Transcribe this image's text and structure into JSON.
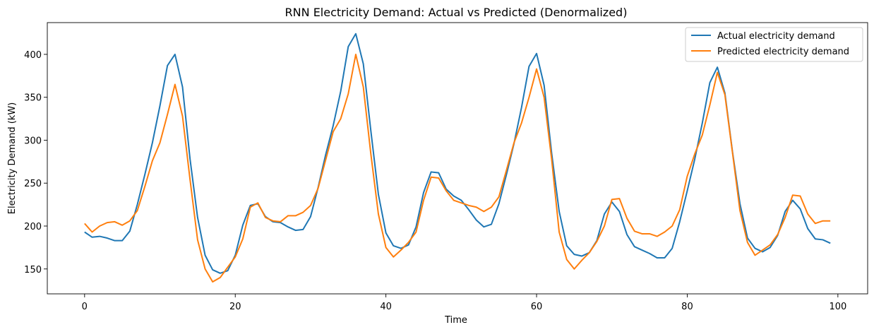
{
  "chart_data": {
    "type": "line",
    "title": "RNN Electricity Demand: Actual vs Predicted (Denormalized)",
    "xlabel": "Time",
    "ylabel": "Electricity Demand (kW)",
    "xlim": [
      -4.95,
      103.95
    ],
    "ylim": [
      121,
      437
    ],
    "xticks": [
      0,
      20,
      40,
      60,
      80,
      100
    ],
    "yticks": [
      150,
      200,
      250,
      300,
      350,
      400
    ],
    "grid": false,
    "legend_position": "top-right",
    "series": [
      {
        "name": "Actual electricity demand",
        "color": "#1f77b4",
        "values": [
          193,
          187,
          188,
          186,
          183,
          183,
          194,
          225,
          260,
          297,
          340,
          387,
          400,
          362,
          278,
          210,
          166,
          149,
          145,
          148,
          166,
          201,
          224,
          226,
          211,
          205,
          204,
          199,
          195,
          196,
          211,
          245,
          283,
          317,
          357,
          409,
          424,
          389,
          311,
          237,
          192,
          177,
          174,
          178,
          199,
          239,
          263,
          262,
          243,
          235,
          230,
          219,
          207,
          199,
          202,
          226,
          260,
          296,
          338,
          386,
          401,
          364,
          285,
          217,
          177,
          167,
          165,
          169,
          183,
          214,
          228,
          217,
          190,
          176,
          172,
          168,
          163,
          163,
          174,
          205,
          241,
          278,
          320,
          367,
          385,
          355,
          287,
          226,
          186,
          174,
          170,
          175,
          189,
          217,
          230,
          220,
          197,
          185,
          184,
          180
        ]
      },
      {
        "name": "Predicted electricity demand",
        "color": "#ff7f0e",
        "values": [
          203,
          193,
          200,
          204,
          205,
          201,
          206,
          218,
          246,
          276,
          297,
          330,
          365,
          328,
          254,
          184,
          150,
          135,
          140,
          152,
          164,
          185,
          222,
          227,
          210,
          206,
          205,
          212,
          212,
          216,
          224,
          244,
          277,
          310,
          325,
          354,
          400,
          362,
          284,
          214,
          175,
          164,
          172,
          181,
          193,
          230,
          257,
          256,
          241,
          230,
          227,
          224,
          222,
          217,
          222,
          234,
          265,
          297,
          320,
          350,
          383,
          350,
          278,
          193,
          161,
          150,
          160,
          169,
          182,
          200,
          231,
          232,
          209,
          194,
          191,
          191,
          188,
          193,
          200,
          219,
          258,
          284,
          306,
          341,
          379,
          353,
          286,
          218,
          181,
          166,
          172,
          178,
          190,
          210,
          236,
          235,
          214,
          203,
          206,
          206
        ]
      }
    ]
  }
}
